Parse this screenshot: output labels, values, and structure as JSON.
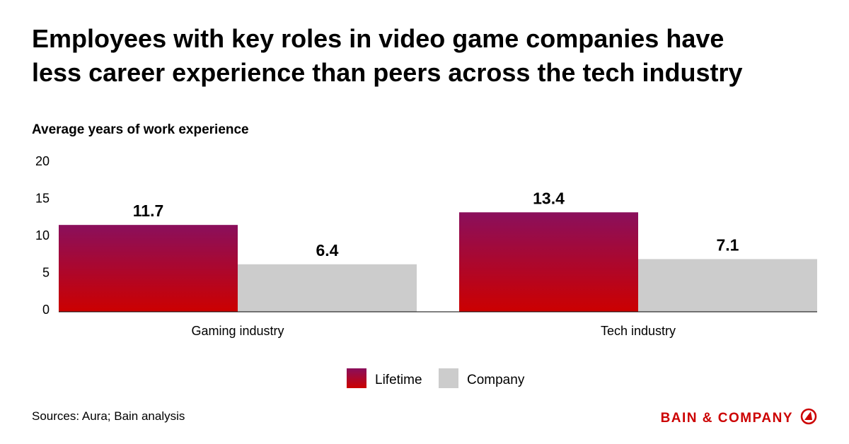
{
  "chart_data": {
    "type": "bar",
    "title": [
      "Employees with key roles in video game companies have",
      "less career experience than peers across the tech industry"
    ],
    "subtitle": "Average years of work experience",
    "categories": [
      "Gaming industry",
      "Tech industry"
    ],
    "series": [
      {
        "name": "Lifetime",
        "color": "#8a0f5c",
        "color_bottom": "#cc0000",
        "values": [
          11.7,
          13.4
        ]
      },
      {
        "name": "Company",
        "color": "#cccccc",
        "values": [
          6.4,
          7.1
        ]
      }
    ],
    "ylim": [
      0,
      20
    ],
    "yticks": [
      0,
      5,
      10,
      15,
      20
    ],
    "grid": false
  },
  "footer": {
    "source": "Sources: Aura; Bain analysis",
    "logo": "BAIN & COMPANY"
  }
}
